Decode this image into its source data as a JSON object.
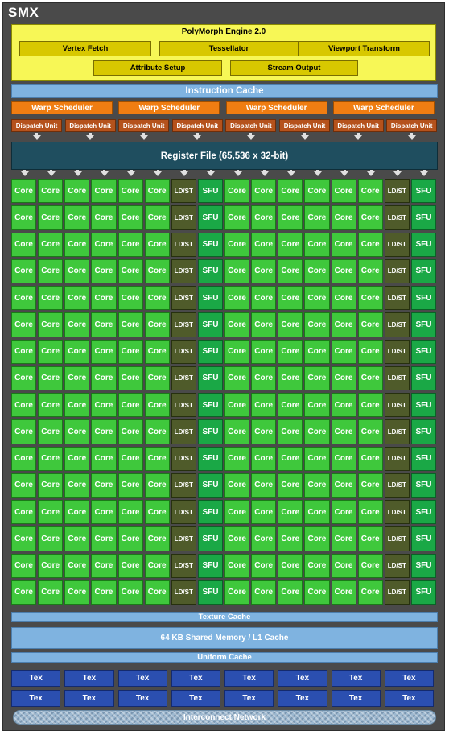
{
  "smx": {
    "title": "SMX"
  },
  "polymorph": {
    "title": "PolyMorph Engine 2.0",
    "units": [
      "Vertex Fetch",
      "Tessellator",
      "Viewport Transform",
      "Attribute Setup",
      "Stream Output"
    ]
  },
  "instruction_cache": "Instruction Cache",
  "warp_schedulers": [
    "Warp Scheduler",
    "Warp Scheduler",
    "Warp Scheduler",
    "Warp Scheduler"
  ],
  "dispatch_units": [
    "Dispatch Unit",
    "Dispatch Unit",
    "Dispatch Unit",
    "Dispatch Unit",
    "Dispatch Unit",
    "Dispatch Unit",
    "Dispatch Unit",
    "Dispatch Unit"
  ],
  "register_file": "Register File (65,536 x 32-bit)",
  "exec_row": [
    "Core",
    "Core",
    "Core",
    "Core",
    "Core",
    "Core",
    "LD/ST",
    "SFU",
    "Core",
    "Core",
    "Core",
    "Core",
    "Core",
    "Core",
    "LD/ST",
    "SFU"
  ],
  "exec_rows_count": 16,
  "texture_cache": "Texture Cache",
  "shared_memory": "64 KB Shared Memory / L1 Cache",
  "uniform_cache": "Uniform Cache",
  "tex_units": [
    [
      "Tex",
      "Tex",
      "Tex",
      "Tex",
      "Tex",
      "Tex",
      "Tex",
      "Tex"
    ],
    [
      "Tex",
      "Tex",
      "Tex",
      "Tex",
      "Tex",
      "Tex",
      "Tex",
      "Tex"
    ]
  ],
  "interconnect": "Interconnect Network",
  "colors": {
    "background": "#4a4a4a",
    "polymorph": "#f7f756",
    "polymorph_unit": "#d8c800",
    "cache": "#7fb3e0",
    "warp_scheduler": "#ef7d12",
    "dispatch_unit": "#b5521c",
    "register_file": "#1f4e5f",
    "core": "#3fc83c",
    "ldst": "#4f5b2a",
    "sfu": "#1aa846",
    "tex": "#2b4fb0"
  }
}
